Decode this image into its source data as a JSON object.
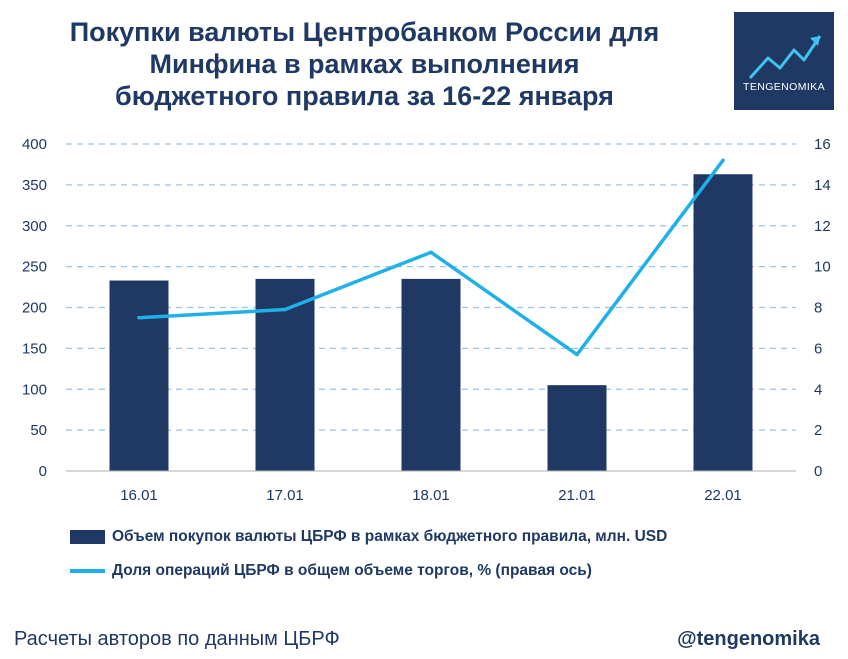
{
  "header": {
    "title_lines": [
      "Покупки валюты Центробанком России для",
      "Минфина в рамках выполнения",
      "бюджетного правила за 16-22 января"
    ]
  },
  "logo": {
    "text": "TENGENOMIKA",
    "icon": "trend-arrow-icon"
  },
  "chart_data": {
    "type": "bar",
    "title": "Покупки валюты Центробанком России для Минфина в рамках выполнения бюджетного правила за 16-22 января",
    "categories": [
      "16.01",
      "17.01",
      "18.01",
      "21.01",
      "22.01"
    ],
    "series": [
      {
        "name": "Объем покупок валюты ЦБРФ в рамках бюджетного правила, млн. USD",
        "type": "bar",
        "axis": "left",
        "color": "#1f3864",
        "values": [
          233,
          235,
          235,
          105,
          363
        ]
      },
      {
        "name": "Доля операций ЦБРФ в общем объеме торгов, % (правая ось)",
        "type": "line",
        "axis": "right",
        "color": "#1fb0e8",
        "values": [
          7.5,
          7.9,
          10.7,
          5.7,
          15.2
        ]
      }
    ],
    "y_left": {
      "min": 0,
      "max": 400,
      "ticks": [
        "0",
        "50",
        "100",
        "150",
        "200",
        "250",
        "300",
        "350",
        "400"
      ]
    },
    "y_right": {
      "min": 0,
      "max": 16,
      "ticks": [
        "0",
        "2",
        "4",
        "6",
        "8",
        "10",
        "12",
        "14",
        "16"
      ]
    },
    "grid": "dashed",
    "legend_position": "bottom"
  },
  "footer": {
    "source": "Расчеты авторов по данным ЦБРФ",
    "handle": "@tengenomika"
  },
  "colors": {
    "navy": "#1f3864",
    "cyan": "#1fb0e8",
    "grid": "#9dc3e6"
  }
}
